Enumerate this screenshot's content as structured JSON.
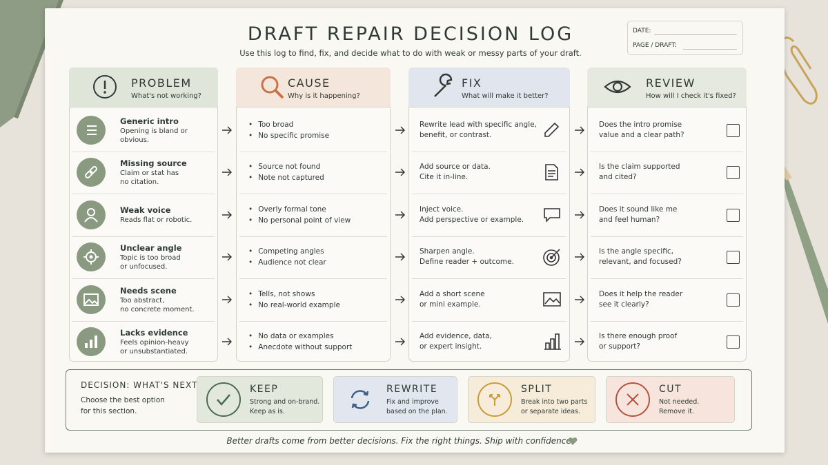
{
  "header": {
    "title": "DRAFT REPAIR DECISION LOG",
    "subtitle": "Use this log to find, fix, and decide what to do with weak or messy parts of your draft.",
    "date_label": "DATE:",
    "page_label": "PAGE / DRAFT:"
  },
  "columns": [
    {
      "title": "PROBLEM",
      "subtitle": "What's not working?"
    },
    {
      "title": "CAUSE",
      "subtitle": "Why is it happening?"
    },
    {
      "title": "FIX",
      "subtitle": "What will make it better?"
    },
    {
      "title": "REVIEW",
      "subtitle": "How will I check it's fixed?"
    }
  ],
  "rows": [
    {
      "problem": "Generic intro",
      "problem_desc": [
        "Opening is bland or obvious."
      ],
      "causes": [
        "Too broad",
        "No specific promise"
      ],
      "fix": [
        "Rewrite lead with specific angle,",
        "benefit, or contrast."
      ],
      "review": [
        "Does the intro promise",
        "value and a clear path?"
      ]
    },
    {
      "problem": "Missing source",
      "problem_desc": [
        "Claim or stat has",
        "no citation."
      ],
      "causes": [
        "Source not found",
        "Note not captured"
      ],
      "fix": [
        "Add source or data.",
        "Cite it in-line."
      ],
      "review": [
        "Is the claim supported",
        "and cited?"
      ]
    },
    {
      "problem": "Weak voice",
      "problem_desc": [
        "Reads flat or robotic."
      ],
      "causes": [
        "Overly formal tone",
        "No personal point of view"
      ],
      "fix": [
        "Inject voice.",
        "Add perspective or example."
      ],
      "review": [
        "Does it sound like me",
        "and feel human?"
      ]
    },
    {
      "problem": "Unclear angle",
      "problem_desc": [
        "Topic is too broad",
        "or unfocused."
      ],
      "causes": [
        "Competing angles",
        "Audience not clear"
      ],
      "fix": [
        "Sharpen angle.",
        "Define reader + outcome."
      ],
      "review": [
        "Is the angle specific,",
        "relevant, and focused?"
      ]
    },
    {
      "problem": "Needs scene",
      "problem_desc": [
        "Too abstract,",
        "no concrete moment."
      ],
      "causes": [
        "Tells, not shows",
        "No real-world example"
      ],
      "fix": [
        "Add a short scene",
        "or mini example."
      ],
      "review": [
        "Does it help the reader",
        "see it clearly?"
      ]
    },
    {
      "problem": "Lacks evidence",
      "problem_desc": [
        "Feels opinion-heavy",
        "or unsubstantiated."
      ],
      "causes": [
        "No data or examples",
        "Anecdote without support"
      ],
      "fix": [
        "Add evidence, data,",
        "or expert insight."
      ],
      "review": [
        "Is there enough proof",
        "or support?"
      ]
    }
  ],
  "decision": {
    "title": "DECISION: WHAT'S NEXT?",
    "desc": [
      "Choose the best option",
      "for this section."
    ],
    "options": [
      {
        "title": "KEEP",
        "desc": [
          "Strong and on-brand.",
          "Keep as is."
        ]
      },
      {
        "title": "REWRITE",
        "desc": [
          "Fix and improve",
          "based on the plan."
        ]
      },
      {
        "title": "SPLIT",
        "desc": [
          "Break into two parts",
          "or separate ideas."
        ]
      },
      {
        "title": "CUT",
        "desc": [
          "Not needed.",
          "Remove it."
        ]
      }
    ]
  },
  "footer": "Better drafts come from better decisions. Fix the right things. Ship with confidence."
}
